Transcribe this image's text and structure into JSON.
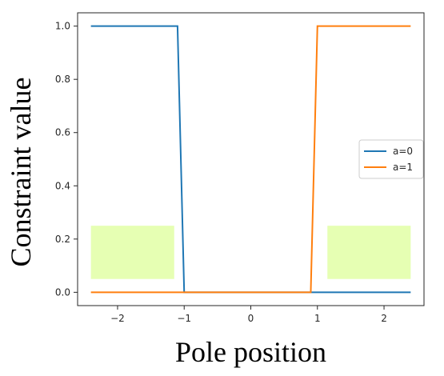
{
  "chart_data": {
    "type": "line",
    "title": "",
    "xlabel": "Pole position",
    "ylabel": "Constraint value",
    "xlim": [
      -2.6,
      2.6
    ],
    "ylim": [
      -0.05,
      1.05
    ],
    "xticks": [
      -2,
      -1,
      0,
      1,
      2
    ],
    "xtick_labels": [
      "−2",
      "−1",
      "0",
      "1",
      "2"
    ],
    "yticks": [
      0.0,
      0.2,
      0.4,
      0.6,
      0.8,
      1.0
    ],
    "ytick_labels": [
      "0.0",
      "0.2",
      "0.4",
      "0.6",
      "0.8",
      "1.0"
    ],
    "grid": false,
    "legend_position": "right",
    "series": [
      {
        "name": "a=0",
        "color": "#1f77b4",
        "x": [
          -2.4,
          -1.1,
          -1.0,
          2.4
        ],
        "y": [
          1.0,
          1.0,
          0.0,
          0.0
        ]
      },
      {
        "name": "a=1",
        "color": "#ff7f0e",
        "x": [
          -2.4,
          0.9,
          1.0,
          2.4
        ],
        "y": [
          0.0,
          0.0,
          1.0,
          1.0
        ]
      }
    ],
    "shaded_regions": [
      {
        "x": [
          -2.4,
          -1.15
        ],
        "y": [
          0.05,
          0.25
        ],
        "color": "#e6ffb3"
      },
      {
        "x": [
          1.15,
          2.4
        ],
        "y": [
          0.05,
          0.25
        ],
        "color": "#e6ffb3"
      }
    ]
  }
}
